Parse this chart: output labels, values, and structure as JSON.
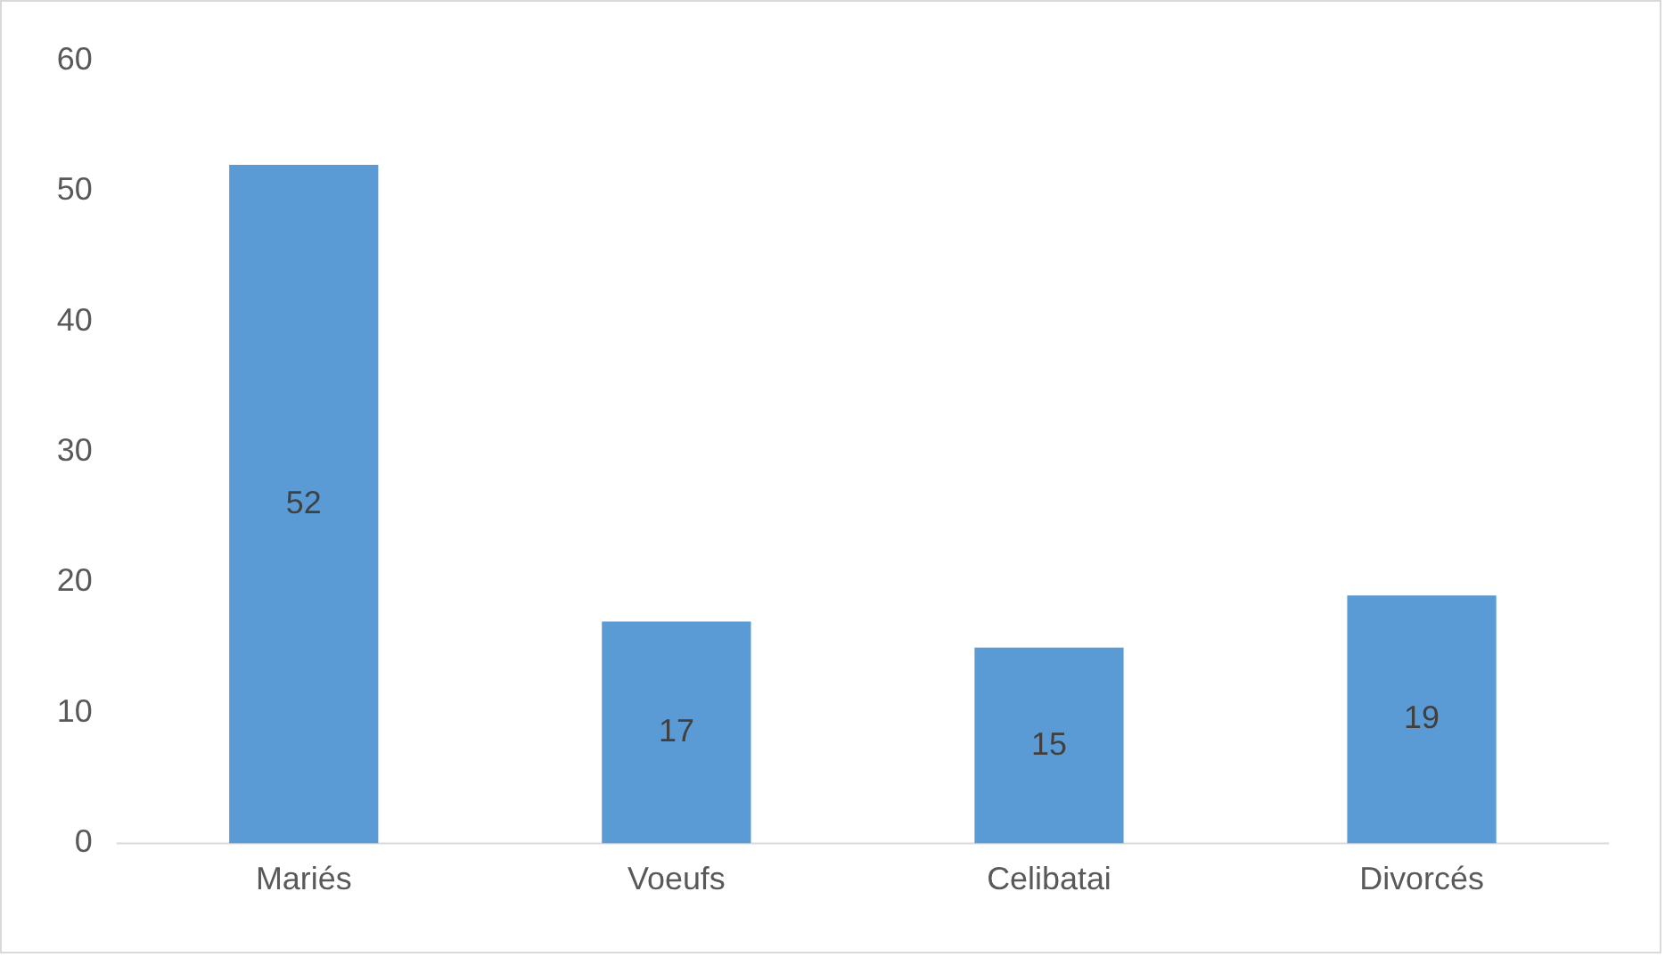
{
  "chart_data": {
    "type": "bar",
    "categories": [
      "Mariés",
      "Voeufs",
      "Celibatai",
      "Divorcés"
    ],
    "values": [
      52,
      17,
      15,
      19
    ],
    "color": "#5b9bd5",
    "ylim": [
      0,
      60
    ],
    "yticks": [
      0,
      10,
      20,
      30,
      40,
      50,
      60
    ],
    "grid": false,
    "legend": false,
    "data_labels": true
  }
}
